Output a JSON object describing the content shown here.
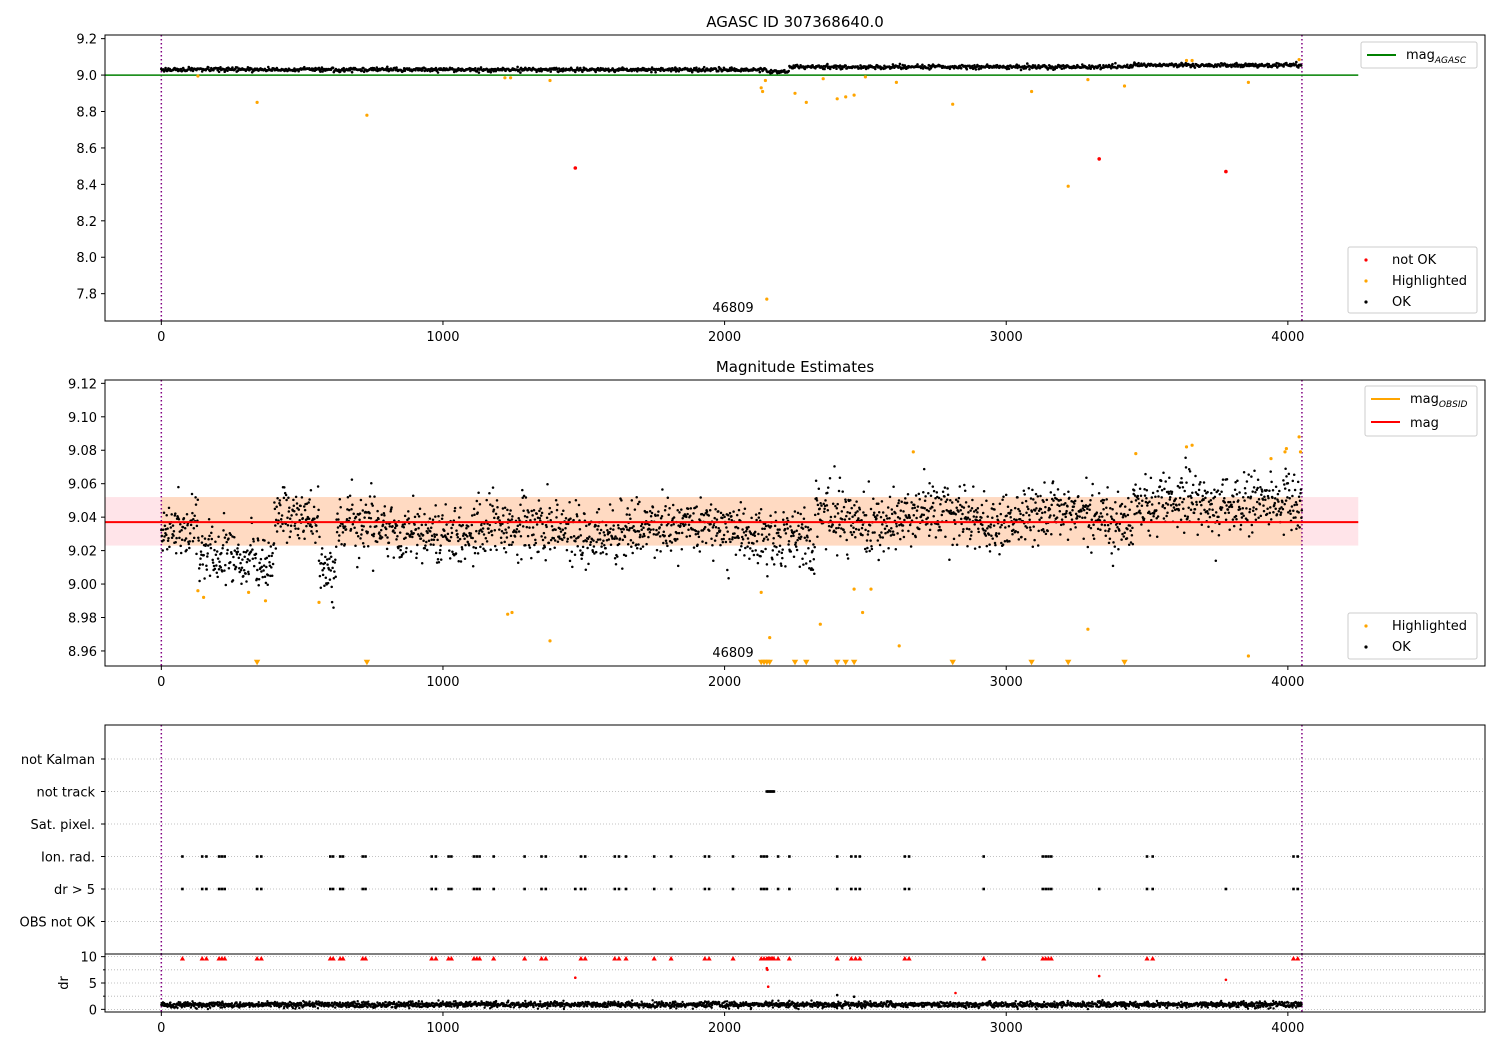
{
  "figure": {
    "colors": {
      "ok": "#000000",
      "not_ok": "#ff0000",
      "highlighted": "#ffa500",
      "mag_agasc": "#008000",
      "mag_obsid": "#ffa500",
      "mag": "#ff0000",
      "obs_boundary": "#800080",
      "band_inner": "#ffdac2",
      "band_outer": "#ffe4e9",
      "grid": "#b0b0b0"
    }
  },
  "chart_data": [
    {
      "type": "scatter",
      "title": "AGASC ID 307368640.0",
      "xlim": [
        -200,
        4700
      ],
      "ylim": [
        7.65,
        9.22
      ],
      "x_ticks": [
        0,
        1000,
        2000,
        3000,
        4000
      ],
      "y_ticks": [
        7.8,
        8.0,
        8.2,
        8.4,
        8.6,
        8.8,
        9.0,
        9.2
      ],
      "y_tick_labels": [
        "7.8",
        "8.0",
        "8.2",
        "8.4",
        "8.6",
        "8.8",
        "9.0",
        "9.2"
      ],
      "obs_boundaries": [
        0,
        4050
      ],
      "obsid_label": "46809",
      "reference_lines": [
        {
          "name": "mag_AGASC",
          "y": 9.0,
          "x_range": [
            -200,
            4250
          ]
        }
      ],
      "legend_top": [
        {
          "name": "mag",
          "sub": "AGASC"
        }
      ],
      "legend_bottom": [
        "not OK",
        "Highlighted",
        "OK"
      ],
      "ok_series": {
        "baseline": 9.03,
        "segments": [
          {
            "x": [
              0,
              2150
            ],
            "level": 9.03
          },
          {
            "x": [
              2150,
              2230
            ],
            "level": 9.02
          },
          {
            "x": [
              2230,
              3450
            ],
            "level": 9.045
          },
          {
            "x": [
              3450,
              4050
            ],
            "level": 9.055
          }
        ],
        "spread": 0.012
      },
      "not_ok_points": [
        [
          1470,
          8.49
        ],
        [
          3330,
          8.54
        ],
        [
          3780,
          8.47
        ]
      ],
      "highlighted_points": [
        [
          130,
          8.995
        ],
        [
          340,
          8.85
        ],
        [
          730,
          8.78
        ],
        [
          1220,
          8.985
        ],
        [
          1240,
          8.985
        ],
        [
          1380,
          8.97
        ],
        [
          2130,
          8.93
        ],
        [
          2135,
          8.91
        ],
        [
          2145,
          8.97
        ],
        [
          2150,
          7.77
        ],
        [
          2250,
          8.9
        ],
        [
          2290,
          8.85
        ],
        [
          2350,
          8.98
        ],
        [
          2400,
          8.87
        ],
        [
          2430,
          8.88
        ],
        [
          2460,
          8.89
        ],
        [
          2500,
          8.99
        ],
        [
          2610,
          8.96
        ],
        [
          2810,
          8.84
        ],
        [
          3090,
          8.91
        ],
        [
          3220,
          8.39
        ],
        [
          3290,
          8.975
        ],
        [
          3420,
          8.94
        ],
        [
          3640,
          9.08
        ],
        [
          3660,
          9.08
        ],
        [
          3860,
          8.96
        ],
        [
          4040,
          9.085
        ]
      ]
    },
    {
      "type": "scatter",
      "title": "Magnitude Estimates",
      "xlim": [
        -200,
        4700
      ],
      "ylim": [
        8.951,
        9.122
      ],
      "x_ticks": [
        0,
        1000,
        2000,
        3000,
        4000
      ],
      "y_ticks": [
        8.96,
        8.98,
        9.0,
        9.02,
        9.04,
        9.06,
        9.08,
        9.1,
        9.12
      ],
      "y_tick_labels": [
        "8.96",
        "8.98",
        "9.00",
        "9.02",
        "9.04",
        "9.06",
        "9.08",
        "9.10",
        "9.12"
      ],
      "obs_boundaries": [
        0,
        4050
      ],
      "obsid_label": "46809",
      "mag": 9.037,
      "mag_band": [
        9.023,
        9.052
      ],
      "mag_band_x": [
        -200,
        4250
      ],
      "mag_obsid_band": [
        9.023,
        9.052
      ],
      "mag_obsid_band_x": [
        0,
        4050
      ],
      "legend_top": [
        {
          "name": "mag",
          "sub": "OBSID"
        },
        {
          "name": "mag",
          "sub": ""
        }
      ],
      "legend_bottom": [
        "Highlighted",
        "OK"
      ],
      "highlighted_points": [
        [
          130,
          8.996
        ],
        [
          150,
          8.992
        ],
        [
          310,
          8.995
        ],
        [
          370,
          8.99
        ],
        [
          560,
          8.989
        ],
        [
          1230,
          8.982
        ],
        [
          1245,
          8.983
        ],
        [
          1380,
          8.966
        ],
        [
          2130,
          8.995
        ],
        [
          2160,
          8.968
        ],
        [
          2340,
          8.976
        ],
        [
          2460,
          8.997
        ],
        [
          2490,
          8.983
        ],
        [
          2520,
          8.997
        ],
        [
          2620,
          8.963
        ],
        [
          2670,
          9.079
        ],
        [
          3290,
          8.973
        ],
        [
          3460,
          9.078
        ],
        [
          3640,
          9.082
        ],
        [
          3660,
          9.083
        ],
        [
          3860,
          8.957
        ],
        [
          3940,
          9.075
        ],
        [
          3990,
          9.079
        ],
        [
          3995,
          9.081
        ],
        [
          4040,
          9.088
        ],
        [
          4045,
          9.079
        ]
      ],
      "below_range_markers": [
        340,
        730,
        2130,
        2140,
        2150,
        2160,
        2250,
        2290,
        2400,
        2430,
        2460,
        2810,
        3090,
        3220,
        3420
      ]
    },
    {
      "type": "scatter",
      "title": "",
      "xlim": [
        -200,
        4700
      ],
      "x_ticks": [
        0,
        1000,
        2000,
        3000,
        4000
      ],
      "obs_boundaries": [
        0,
        4050
      ],
      "flag_rows": [
        "not Kalman",
        "not track",
        "Sat. pixel.",
        "Ion. rad.",
        "dr > 5",
        "OBS not OK"
      ],
      "flag_points": {
        "not Kalman": [],
        "not track": [
          2150,
          2155,
          2160,
          2165,
          2170,
          2175
        ],
        "Sat. pixel.": [],
        "Ion. rad.": [
          75,
          145,
          160,
          205,
          215,
          225,
          340,
          355,
          600,
          610,
          635,
          645,
          715,
          725,
          960,
          975,
          1020,
          1030,
          1110,
          1120,
          1130,
          1180,
          1290,
          1350,
          1365,
          1490,
          1505,
          1610,
          1625,
          1650,
          1750,
          1810,
          1930,
          1945,
          2030,
          2130,
          2140,
          2150,
          2190,
          2230,
          2400,
          2450,
          2465,
          2480,
          2640,
          2655,
          2920,
          3130,
          3140,
          3150,
          3160,
          3500,
          3520,
          4020,
          4035
        ],
        "dr > 5": [
          75,
          145,
          160,
          205,
          215,
          225,
          340,
          355,
          600,
          610,
          635,
          645,
          715,
          725,
          960,
          975,
          1020,
          1030,
          1110,
          1120,
          1130,
          1180,
          1290,
          1350,
          1365,
          1470,
          1490,
          1505,
          1610,
          1625,
          1650,
          1750,
          1810,
          1930,
          1945,
          2030,
          2130,
          2140,
          2150,
          2190,
          2230,
          2400,
          2450,
          2465,
          2480,
          2640,
          2655,
          2920,
          3130,
          3140,
          3150,
          3160,
          3330,
          3500,
          3520,
          3780,
          4020,
          4035
        ],
        "OBS not OK": []
      }
    },
    {
      "type": "scatter",
      "title": "",
      "xlim": [
        -200,
        4700
      ],
      "ylim": [
        -0.5,
        10.5
      ],
      "ylabel": "dr",
      "x_ticks": [
        0,
        1000,
        2000,
        3000,
        4000
      ],
      "x_tick_labels": [
        "0",
        "1000",
        "2000",
        "3000",
        "4000"
      ],
      "y_ticks": [
        0,
        5,
        10
      ],
      "y_tick_labels": [
        "0",
        "5",
        "10"
      ],
      "obs_boundaries": [
        0,
        4050
      ],
      "dr_baseline": 0.9,
      "dr_spread": 0.6,
      "dr_cap": 10,
      "capped_markers": [
        75,
        145,
        160,
        205,
        215,
        225,
        340,
        355,
        600,
        610,
        635,
        645,
        715,
        725,
        960,
        975,
        1020,
        1030,
        1110,
        1120,
        1130,
        1180,
        1290,
        1350,
        1365,
        1490,
        1505,
        1610,
        1625,
        1650,
        1750,
        1810,
        1930,
        1945,
        2030,
        2130,
        2140,
        2150,
        2155,
        2160,
        2165,
        2170,
        2175,
        2190,
        2230,
        2400,
        2450,
        2465,
        2480,
        2640,
        2655,
        2920,
        3130,
        3140,
        3150,
        3160,
        3500,
        3520,
        4020,
        4035
      ],
      "red_points": [
        [
          1470,
          6.0
        ],
        [
          2150,
          7.8
        ],
        [
          2152,
          7.5
        ],
        [
          2155,
          4.3
        ],
        [
          2820,
          3.1
        ],
        [
          3330,
          6.3
        ],
        [
          3780,
          5.6
        ]
      ],
      "black_outliers": [
        [
          2230,
          1.6
        ],
        [
          2400,
          2.7
        ],
        [
          2460,
          2.4
        ],
        [
          2500,
          1.5
        ]
      ]
    }
  ]
}
